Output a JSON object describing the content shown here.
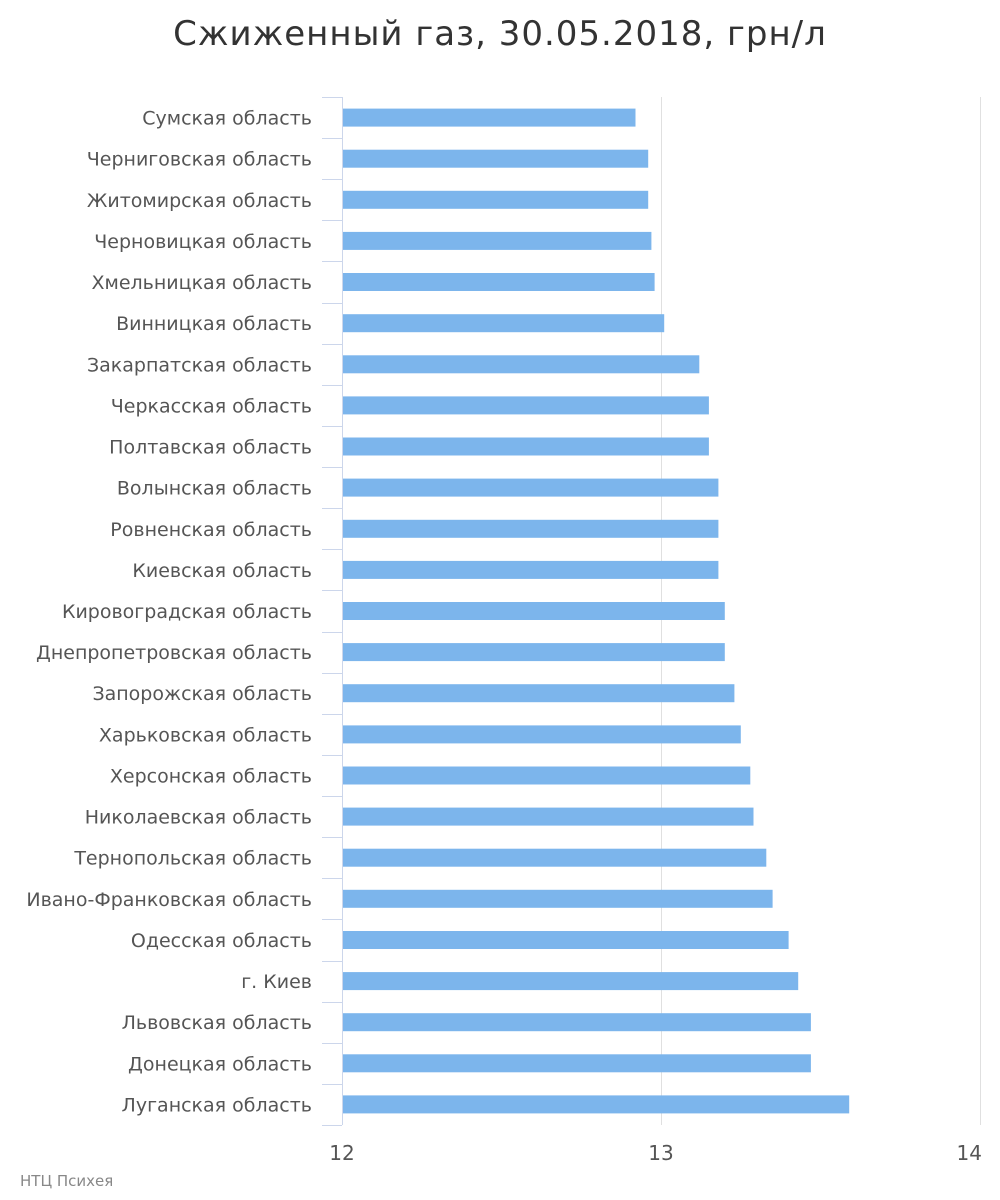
{
  "title": "Сжиженный газ, 30.05.2018, грн/л",
  "credit": "НТЦ Психея",
  "colors": {
    "bar": "#7cb5ec",
    "grid": "#e0e0e0",
    "axis": "#ccd6eb",
    "text": "#555555"
  },
  "chart_data": {
    "type": "bar",
    "orientation": "horizontal",
    "title": "Сжиженный газ, 30.05.2018, грн/л",
    "xlabel": "",
    "ylabel": "",
    "xlim": [
      12,
      14
    ],
    "ticks": [
      12,
      13,
      14
    ],
    "tick_labels": [
      "12",
      "13",
      "14"
    ],
    "grid": true,
    "categories": [
      "Сумская область",
      "Черниговская область",
      "Житомирская область",
      "Черновицкая область",
      "Хмельницкая область",
      "Винницкая область",
      "Закарпатская область",
      "Черкасская область",
      "Полтавская область",
      "Волынская область",
      "Ровненская область",
      "Киевская область",
      "Кировоградская область",
      "Днепропетровская область",
      "Запорожская область",
      "Харьковская область",
      "Херсонская область",
      "Николаевская область",
      "Тернопольская область",
      "Ивано-Франковская область",
      "Одесская область",
      "г. Киев",
      "Львовская область",
      "Донецкая область",
      "Луганская область"
    ],
    "values": [
      12.92,
      12.96,
      12.96,
      12.97,
      12.98,
      13.01,
      13.12,
      13.15,
      13.15,
      13.18,
      13.18,
      13.18,
      13.2,
      13.2,
      13.23,
      13.25,
      13.28,
      13.29,
      13.33,
      13.35,
      13.4,
      13.43,
      13.47,
      13.47,
      13.59
    ]
  }
}
